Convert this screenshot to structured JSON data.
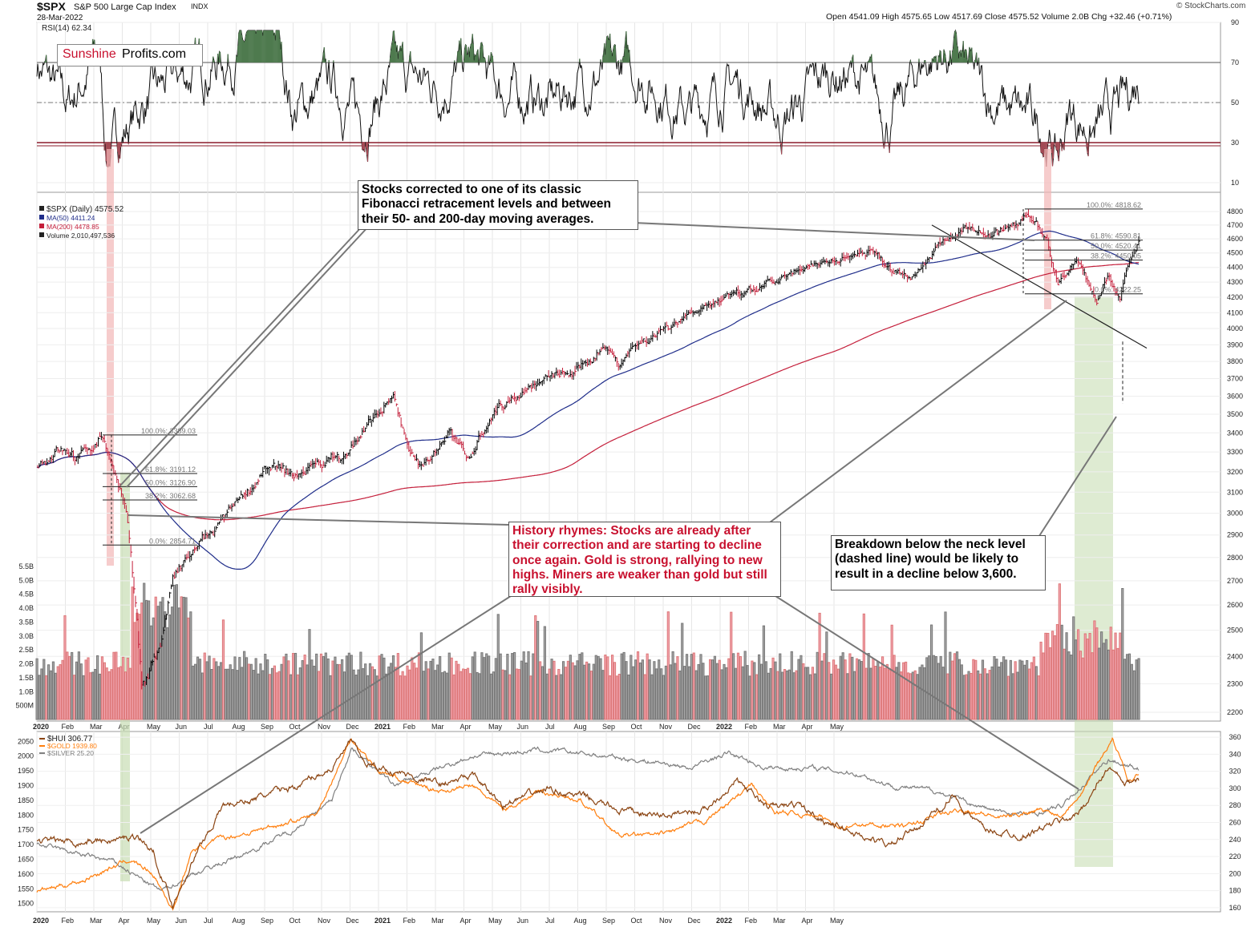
{
  "header": {
    "ticker": "$SPX",
    "name": "S&P 500 Large Cap Index",
    "exchange": "INDX",
    "date": "28-Mar-2022",
    "quote": "Open 4541.09  High 4575.65  Low 4517.69  Close 4575.52  Volume 2.0B  Chg +32.46 (+0.71%)",
    "copyright": "© StockCharts.com"
  },
  "logo": {
    "part1": "Sunshine",
    "part2": "Profits.com",
    "color1": "#c8102e",
    "color2": "#000000"
  },
  "colors": {
    "price_up": "#000000",
    "price_down": "#c41e3a",
    "ma50": "#1f2d8a",
    "ma200": "#c41e3a",
    "volume_up": "#a9a9a9",
    "volume_down": "#f2a7b2",
    "hui": "#8b4513",
    "gold": "#ff7f0e",
    "silver": "#808080",
    "green_band": "#c8ddb4",
    "red_band": "#f2b6b6",
    "callout_red": "#c8102e"
  },
  "callouts": {
    "fib": "Stocks corrected to one of its classic Fibonacci retracement levels and between their 50- and 200-day moving averages.",
    "history": "History rhymes: Stocks are already after their correction and are starting to decline once again. Gold is strong, rallying to new highs. Miners are weaker than gold but still rally visibly.",
    "breakdown": "Breakdown below the neck level (dashed line) would be likely to result in a decline below 3,600."
  },
  "chart_data": [
    {
      "type": "line",
      "panel": "rsi",
      "title": "RSI(14) 62.34",
      "y_ticks": [
        10,
        30,
        50,
        70,
        90
      ],
      "reference_levels": [
        30,
        50,
        70
      ],
      "series": [
        {
          "name": "RSI(14)",
          "last": 62.34
        }
      ],
      "keypoints": [
        [
          0,
          70
        ],
        [
          40,
          48
        ],
        [
          80,
          75
        ],
        [
          90,
          22
        ],
        [
          100,
          30
        ],
        [
          140,
          50
        ],
        [
          180,
          62
        ],
        [
          230,
          70
        ],
        [
          310,
          84
        ],
        [
          330,
          45
        ],
        [
          380,
          60
        ],
        [
          420,
          40
        ],
        [
          460,
          65
        ],
        [
          520,
          58
        ],
        [
          560,
          72
        ],
        [
          600,
          55
        ],
        [
          660,
          50
        ],
        [
          700,
          60
        ],
        [
          760,
          68
        ],
        [
          840,
          45
        ],
        [
          900,
          60
        ],
        [
          960,
          40
        ],
        [
          1020,
          65
        ],
        [
          1060,
          62
        ],
        [
          1100,
          40
        ],
        [
          1140,
          70
        ],
        [
          1180,
          75
        ],
        [
          1230,
          50
        ],
        [
          1290,
          40
        ],
        [
          1305,
          28
        ],
        [
          1315,
          22
        ],
        [
          1330,
          45
        ],
        [
          1360,
          35
        ],
        [
          1400,
          50
        ],
        [
          1418,
          62.34
        ]
      ]
    },
    {
      "type": "line",
      "panel": "price",
      "title": "$SPX (Daily) 4575.52",
      "legend": [
        "$SPX (Daily) 4575.52",
        "MA(50) 4411.24",
        "MA(200) 4478.85",
        "Volume 2,010,497,536"
      ],
      "x_tick_labels": [
        "2020",
        "Feb",
        "Mar",
        "Apr",
        "May",
        "Jun",
        "Jul",
        "Aug",
        "Sep",
        "Oct",
        "Nov",
        "Dec",
        "2021",
        "Feb",
        "Mar",
        "Apr",
        "May",
        "Jun",
        "Jul",
        "Aug",
        "Sep",
        "Oct",
        "Nov",
        "Dec",
        "2022",
        "Feb",
        "Mar",
        "Apr",
        "May"
      ],
      "y_ticks": [
        2200,
        2300,
        2400,
        2500,
        2600,
        2700,
        2800,
        2900,
        3000,
        3100,
        3200,
        3300,
        3400,
        3500,
        3600,
        3700,
        3800,
        3900,
        4000,
        4100,
        4200,
        4300,
        4400,
        4500,
        4600,
        4700,
        4800
      ],
      "volume_ticks": [
        "500M",
        "1.0B",
        "1.5B",
        "2.0B",
        "2.5B",
        "3.0B",
        "3.5B",
        "4.0B",
        "4.5B",
        "5.0B",
        "5.5B"
      ],
      "fibonacci_2020": [
        "100.0%: 3389.03",
        "61.8%: 3191.12",
        "50.0%: 3126.90",
        "38.2%: 3062.68",
        "0.0%: 2854.71"
      ],
      "fibonacci_2022": [
        "100.0%: 4818.62",
        "61.8%: 4590.81",
        "50.0%: 4520.41",
        "38.2%: 4450.05",
        "0.0%: 4222.25"
      ],
      "series": [
        {
          "name": "$SPX",
          "last": 4575.52,
          "keypoints": [
            [
              0,
              3230
            ],
            [
              30,
              3330
            ],
            [
              55,
              3270
            ],
            [
              85,
              3386
            ],
            [
              100,
              3210
            ],
            [
              115,
              3000
            ],
            [
              135,
              2300
            ],
            [
              160,
              2450
            ],
            [
              175,
              2700
            ],
            [
              205,
              2840
            ],
            [
              240,
              2960
            ],
            [
              270,
              3100
            ],
            [
              300,
              3220
            ],
            [
              330,
              3180
            ],
            [
              370,
              3250
            ],
            [
              400,
              3300
            ],
            [
              440,
              3500
            ],
            [
              460,
              3580
            ],
            [
              480,
              3300
            ],
            [
              500,
              3230
            ],
            [
              530,
              3400
            ],
            [
              555,
              3270
            ],
            [
              570,
              3400
            ],
            [
              590,
              3520
            ],
            [
              630,
              3650
            ],
            [
              660,
              3700
            ],
            [
              700,
              3750
            ],
            [
              730,
              3900
            ],
            [
              750,
              3800
            ],
            [
              770,
              3900
            ],
            [
              800,
              3970
            ],
            [
              840,
              4100
            ],
            [
              880,
              4180
            ],
            [
              920,
              4230
            ],
            [
              950,
              4300
            ],
            [
              1000,
              4400
            ],
            [
              1040,
              4480
            ],
            [
              1075,
              4520
            ],
            [
              1100,
              4390
            ],
            [
              1130,
              4350
            ],
            [
              1160,
              4550
            ],
            [
              1200,
              4680
            ],
            [
              1230,
              4600
            ],
            [
              1255,
              4700
            ],
            [
              1275,
              4780
            ],
            [
              1300,
              4600
            ],
            [
              1315,
              4300
            ],
            [
              1340,
              4450
            ],
            [
              1365,
              4170
            ],
            [
              1380,
              4350
            ],
            [
              1395,
              4190
            ],
            [
              1405,
              4420
            ],
            [
              1418,
              4575.52
            ]
          ]
        },
        {
          "name": "MA(50)",
          "last": 4411.24
        },
        {
          "name": "MA(200)",
          "last": 4478.85
        }
      ]
    },
    {
      "type": "line",
      "panel": "metals",
      "legend": [
        "$HUI 306.77",
        "$GOLD 1939.80",
        "$SILVER 25.20"
      ],
      "y_left_ticks": [
        1500,
        1550,
        1600,
        1650,
        1700,
        1750,
        1800,
        1850,
        1900,
        1950,
        2000,
        2050
      ],
      "y_right_ticks": [
        160,
        180,
        200,
        220,
        240,
        260,
        280,
        300,
        320,
        340,
        360
      ],
      "series": [
        {
          "name": "$HUI",
          "last": 306.77,
          "keypoints": [
            [
              0,
              238
            ],
            [
              60,
              238
            ],
            [
              110,
              240
            ],
            [
              130,
              245
            ],
            [
              150,
              225
            ],
            [
              175,
              163
            ],
            [
              200,
              215
            ],
            [
              240,
              280
            ],
            [
              290,
              290
            ],
            [
              340,
              305
            ],
            [
              380,
              325
            ],
            [
              405,
              355
            ],
            [
              420,
              330
            ],
            [
              460,
              320
            ],
            [
              520,
              305
            ],
            [
              560,
              315
            ],
            [
              600,
              280
            ],
            [
              660,
              300
            ],
            [
              700,
              290
            ],
            [
              760,
              272
            ],
            [
              800,
              268
            ],
            [
              860,
              275
            ],
            [
              900,
              310
            ],
            [
              940,
              278
            ],
            [
              980,
              280
            ],
            [
              1020,
              260
            ],
            [
              1060,
              245
            ],
            [
              1100,
              232
            ],
            [
              1140,
              260
            ],
            [
              1180,
              290
            ],
            [
              1220,
              250
            ],
            [
              1270,
              245
            ],
            [
              1320,
              262
            ],
            [
              1340,
              270
            ],
            [
              1360,
              295
            ],
            [
              1380,
              325
            ],
            [
              1400,
              305
            ],
            [
              1418,
              306.77
            ]
          ]
        },
        {
          "name": "$GOLD",
          "last": 1939.8,
          "keypoints": [
            [
              0,
              1540
            ],
            [
              60,
              1580
            ],
            [
              120,
              1650
            ],
            [
              150,
              1600
            ],
            [
              175,
              1480
            ],
            [
              200,
              1680
            ],
            [
              240,
              1720
            ],
            [
              300,
              1760
            ],
            [
              360,
              1800
            ],
            [
              405,
              2060
            ],
            [
              440,
              1950
            ],
            [
              480,
              1910
            ],
            [
              520,
              1880
            ],
            [
              560,
              1900
            ],
            [
              600,
              1820
            ],
            [
              650,
              1880
            ],
            [
              700,
              1850
            ],
            [
              750,
              1730
            ],
            [
              800,
              1730
            ],
            [
              860,
              1780
            ],
            [
              920,
              1900
            ],
            [
              950,
              1810
            ],
            [
              1000,
              1800
            ],
            [
              1040,
              1760
            ],
            [
              1080,
              1770
            ],
            [
              1120,
              1760
            ],
            [
              1160,
              1800
            ],
            [
              1200,
              1820
            ],
            [
              1240,
              1790
            ],
            [
              1290,
              1820
            ],
            [
              1320,
              1800
            ],
            [
              1350,
              1900
            ],
            [
              1385,
              2060
            ],
            [
              1405,
              1920
            ],
            [
              1418,
              1939.8
            ]
          ]
        },
        {
          "name": "$SILVER",
          "last": 25.2,
          "keypoints": [
            [
              0,
              1700
            ],
            [
              100,
              1640
            ],
            [
              160,
              1540
            ],
            [
              200,
              1600
            ],
            [
              260,
              1660
            ],
            [
              330,
              1750
            ],
            [
              380,
              1850
            ],
            [
              405,
              2030
            ],
            [
              460,
              1900
            ],
            [
              560,
              2000
            ],
            [
              640,
              2020
            ],
            [
              700,
              2010
            ],
            [
              760,
              1990
            ],
            [
              800,
              1980
            ],
            [
              840,
              1960
            ],
            [
              890,
              2010
            ],
            [
              940,
              1960
            ],
            [
              1000,
              1960
            ],
            [
              1060,
              1940
            ],
            [
              1100,
              1900
            ],
            [
              1160,
              1880
            ],
            [
              1200,
              1840
            ],
            [
              1240,
              1810
            ],
            [
              1280,
              1800
            ],
            [
              1320,
              1830
            ],
            [
              1380,
              1990
            ],
            [
              1418,
              1960
            ]
          ]
        }
      ]
    }
  ]
}
